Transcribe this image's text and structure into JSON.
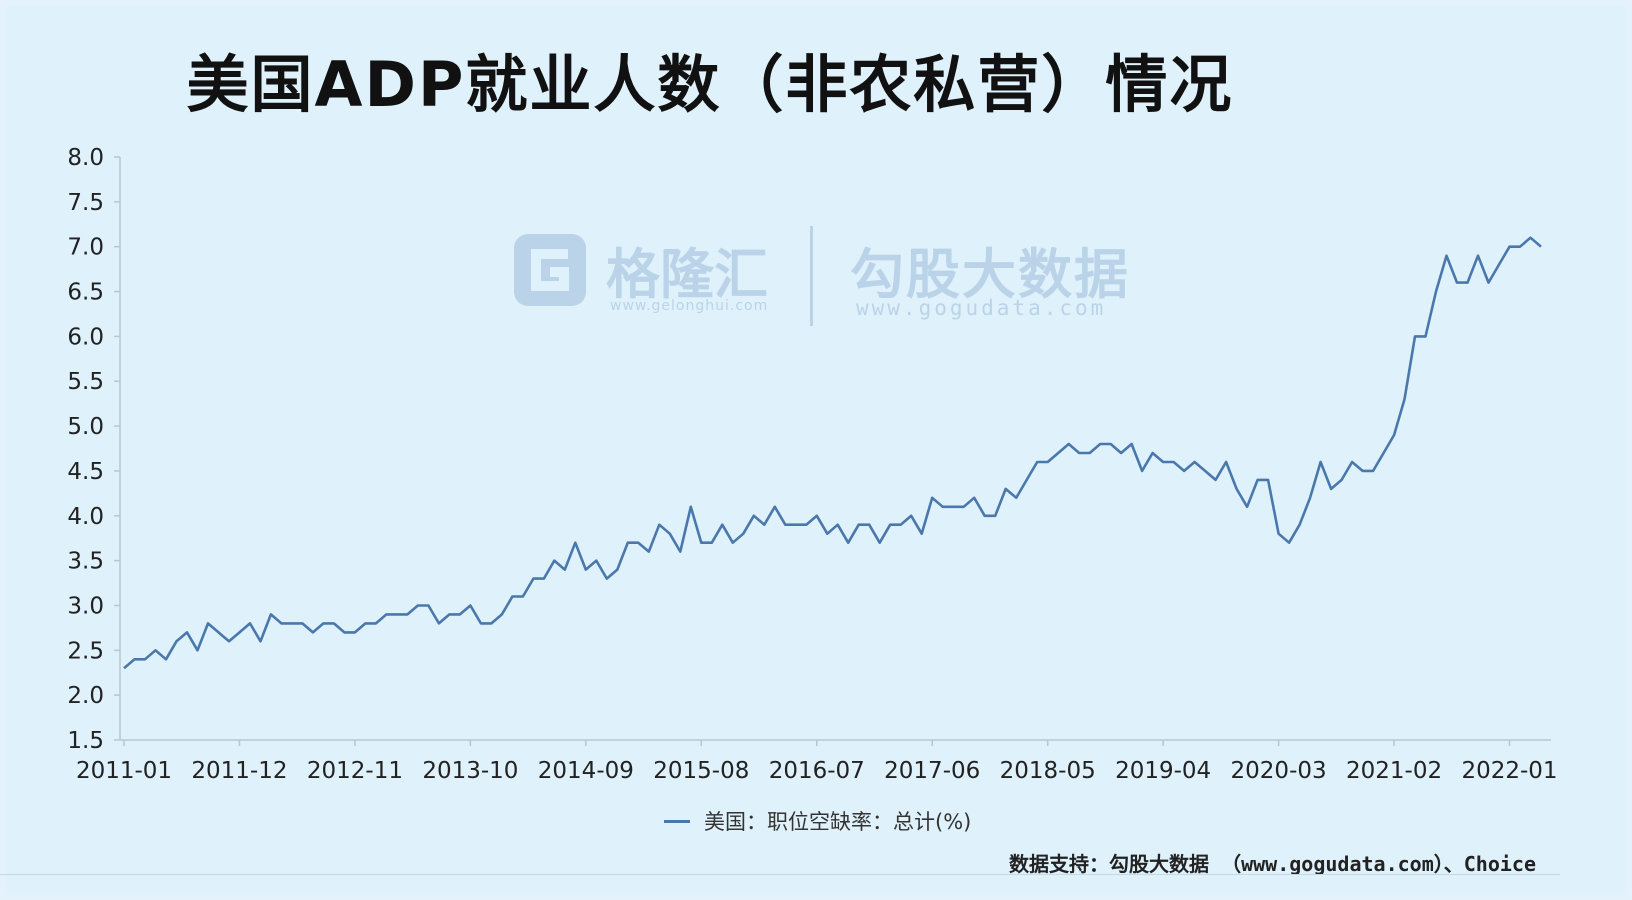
{
  "title": "美国ADP就业人数（非农私营）情况",
  "watermark": {
    "brand1": "格隆汇",
    "url1": "www.gelonghui.com",
    "brand2": "勾股大数据",
    "url2": "www.gogudata.com"
  },
  "legend_label": "美国：职位空缺率：总计(%)",
  "source": "数据支持：勾股大数据 （www.gogudata.com）、Choice",
  "colors": {
    "line": "#4a78ad",
    "background": "#dff1fb",
    "axis": "#b8c7d3"
  },
  "chart_data": {
    "type": "line",
    "title": "美国ADP就业人数（非农私营）情况",
    "xlabel": "",
    "ylabel": "",
    "ylim": [
      1.5,
      8.0
    ],
    "yticks": [
      "8.0",
      "7.5",
      "7.0",
      "6.5",
      "6.0",
      "5.5",
      "5.0",
      "4.5",
      "4.0",
      "3.5",
      "3.0",
      "2.5",
      "2.0",
      "1.5"
    ],
    "xticks": [
      "2011-01",
      "2011-12",
      "2012-11",
      "2013-10",
      "2014-09",
      "2015-08",
      "2016-07",
      "2017-06",
      "2018-05",
      "2019-04",
      "2020-03",
      "2021-02",
      "2022-01"
    ],
    "grid": false,
    "legend": "bottom-center",
    "series": [
      {
        "name": "美国：职位空缺率：总计(%)",
        "start": "2011-01",
        "frequency": "monthly",
        "values": [
          2.3,
          2.4,
          2.4,
          2.5,
          2.4,
          2.6,
          2.7,
          2.5,
          2.8,
          2.7,
          2.6,
          2.7,
          2.8,
          2.6,
          2.9,
          2.8,
          2.8,
          2.8,
          2.7,
          2.8,
          2.8,
          2.7,
          2.7,
          2.8,
          2.8,
          2.9,
          2.9,
          2.9,
          3.0,
          3.0,
          2.8,
          2.9,
          2.9,
          3.0,
          2.8,
          2.8,
          2.9,
          3.1,
          3.1,
          3.3,
          3.3,
          3.5,
          3.4,
          3.7,
          3.4,
          3.5,
          3.3,
          3.4,
          3.7,
          3.7,
          3.6,
          3.9,
          3.8,
          3.6,
          4.1,
          3.7,
          3.7,
          3.9,
          3.7,
          3.8,
          4.0,
          3.9,
          4.1,
          3.9,
          3.9,
          3.9,
          4.0,
          3.8,
          3.9,
          3.7,
          3.9,
          3.9,
          3.7,
          3.9,
          3.9,
          4.0,
          3.8,
          4.2,
          4.1,
          4.1,
          4.1,
          4.2,
          4.0,
          4.0,
          4.3,
          4.2,
          4.4,
          4.6,
          4.6,
          4.7,
          4.8,
          4.7,
          4.7,
          4.8,
          4.8,
          4.7,
          4.8,
          4.5,
          4.7,
          4.6,
          4.6,
          4.5,
          4.6,
          4.5,
          4.4,
          4.6,
          4.3,
          4.1,
          4.4,
          4.4,
          3.8,
          3.7,
          3.9,
          4.2,
          4.6,
          4.3,
          4.4,
          4.6,
          4.5,
          4.5,
          4.7,
          4.9,
          5.3,
          6.0,
          6.0,
          6.5,
          6.9,
          6.6,
          6.6,
          6.9,
          6.6,
          6.8,
          7.0,
          7.0,
          7.1,
          7.0
        ]
      }
    ]
  }
}
